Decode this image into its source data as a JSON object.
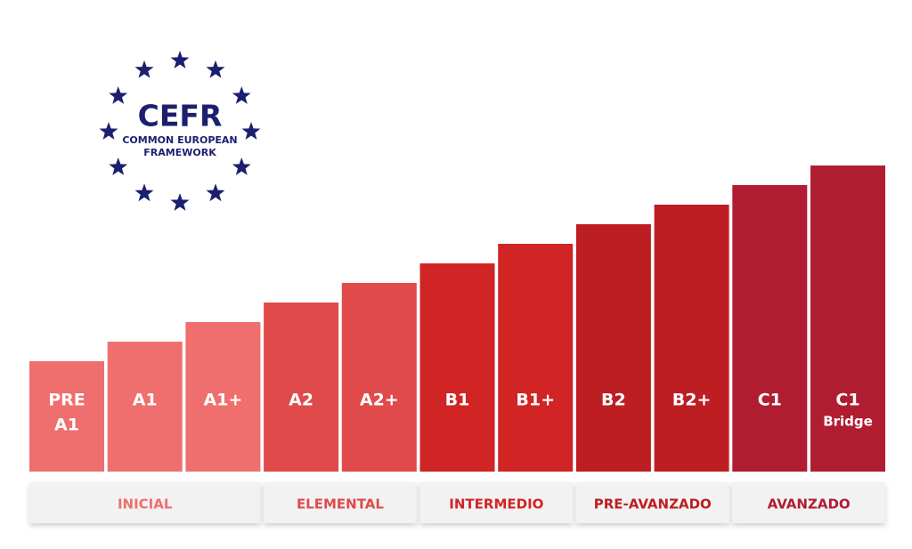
{
  "logo": {
    "title": "CEFR",
    "line1": "COMMON EUROPEAN",
    "line2": "FRAMEWORK"
  },
  "levels": [
    {
      "lines": [
        "PRE",
        "A1"
      ],
      "color": "#ef6e6e"
    },
    {
      "lines": [
        "A1"
      ],
      "color": "#ef6e6e"
    },
    {
      "lines": [
        "A1+"
      ],
      "color": "#ef6e6e"
    },
    {
      "lines": [
        "A2"
      ],
      "color": "#e04a4a"
    },
    {
      "lines": [
        "A2+"
      ],
      "color": "#e04a4a"
    },
    {
      "lines": [
        "B1"
      ],
      "color": "#d12424"
    },
    {
      "lines": [
        "B1+"
      ],
      "color": "#d12424"
    },
    {
      "lines": [
        "B2"
      ],
      "color": "#bd1e22"
    },
    {
      "lines": [
        "B2+"
      ],
      "color": "#bd1e22"
    },
    {
      "lines": [
        "C1"
      ],
      "color": "#b01d31"
    },
    {
      "lines": [
        "C1",
        "Bridge"
      ],
      "color": "#b01d31"
    }
  ],
  "groups": [
    {
      "name": "INICIAL",
      "color": "#ef6e6e"
    },
    {
      "name": "ELEMENTAL",
      "color": "#e04a4a"
    },
    {
      "name": "INTERMEDIO",
      "color": "#d12424"
    },
    {
      "name": "PRE-AVANZADO",
      "color": "#bd1e22"
    },
    {
      "name": "AVANZADO",
      "color": "#b01d31"
    }
  ]
}
